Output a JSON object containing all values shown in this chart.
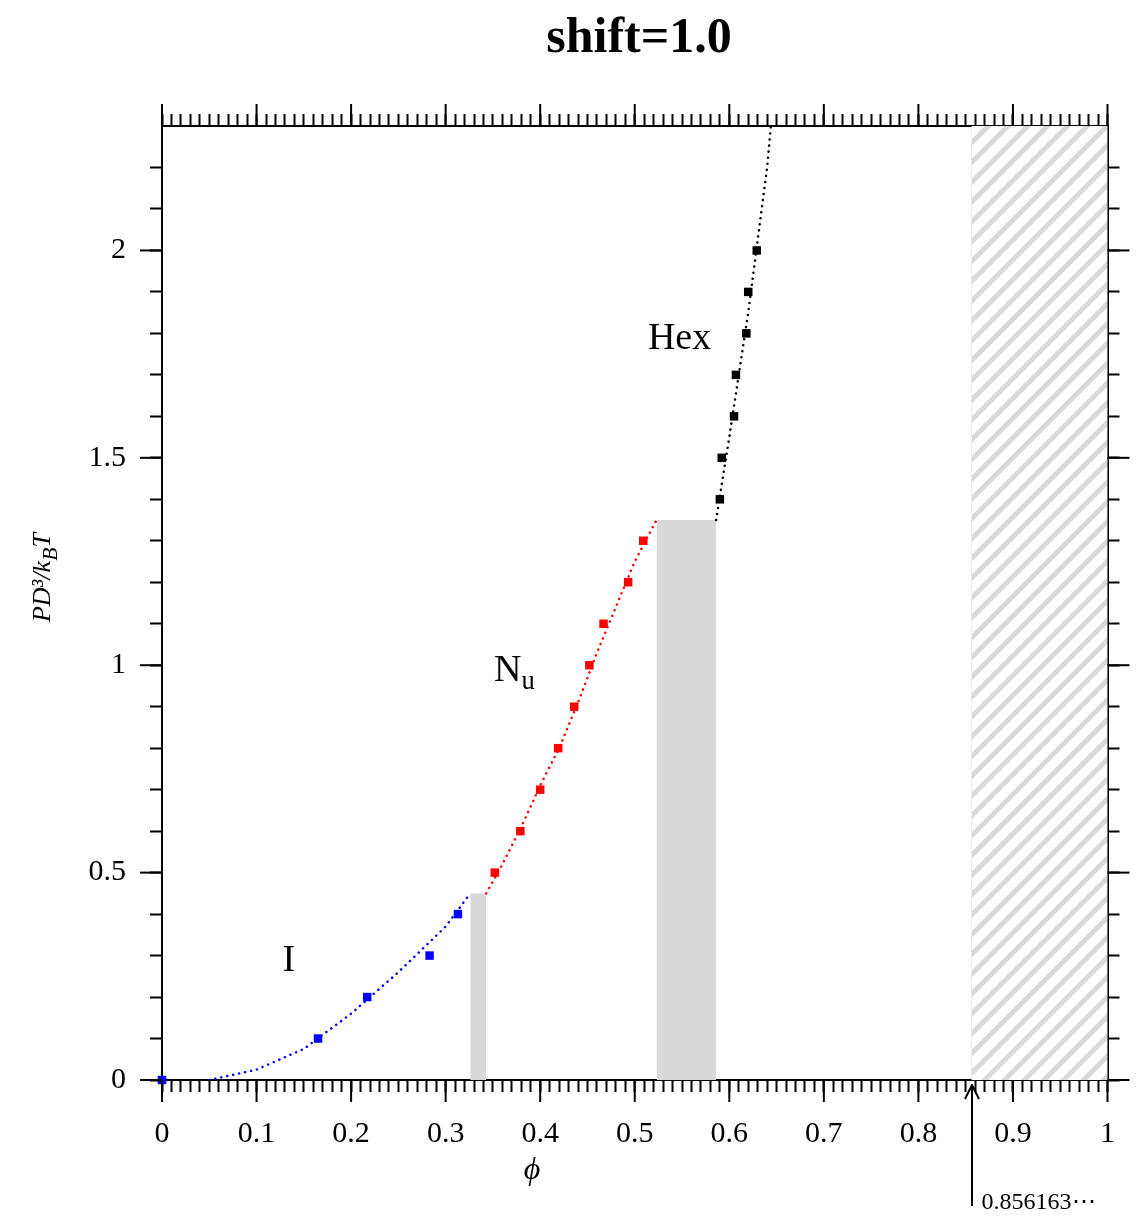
{
  "chart_data": {
    "type": "scatter",
    "title": "shift=1.0",
    "xlabel": "ϕ",
    "ylabel": "PD³/k$_{B}$T",
    "xlim": [
      0,
      1
    ],
    "ylim": [
      0,
      2.3
    ],
    "xticks": [
      0,
      {
        "value": 0.01,
        "label": null
      },
      {
        "value": 0.02,
        "label": null
      },
      {
        "value": 0.03,
        "label": null
      },
      {
        "value": 0.04,
        "label": null
      },
      {
        "value": 0.05,
        "label": null
      },
      {
        "value": 0.06,
        "label": null
      },
      {
        "value": 0.07,
        "label": null
      },
      {
        "value": 0.08,
        "label": null
      },
      {
        "value": 0.09,
        "label": null
      },
      0.1,
      {
        "value": 0.11,
        "label": null
      },
      {
        "value": 0.12,
        "label": null
      },
      {
        "value": 0.13,
        "label": null
      },
      {
        "value": 0.14,
        "label": null
      },
      {
        "value": 0.15,
        "label": null
      },
      {
        "value": 0.16,
        "label": null
      },
      {
        "value": 0.17,
        "label": null
      },
      {
        "value": 0.18,
        "label": null
      },
      {
        "value": 0.19,
        "label": null
      },
      0.2,
      {
        "value": 0.21,
        "label": null
      },
      {
        "value": 0.22,
        "label": null
      },
      {
        "value": 0.23,
        "label": null
      },
      {
        "value": 0.24,
        "label": null
      },
      {
        "value": 0.25,
        "label": null
      },
      {
        "value": 0.26,
        "label": null
      },
      {
        "value": 0.27,
        "label": null
      },
      {
        "value": 0.28,
        "label": null
      },
      {
        "value": 0.29,
        "label": null
      },
      0.3,
      {
        "value": 0.31,
        "label": null
      },
      {
        "value": 0.32,
        "label": null
      },
      {
        "value": 0.33,
        "label": null
      },
      {
        "value": 0.34,
        "label": null
      },
      {
        "value": 0.35,
        "label": null
      },
      {
        "value": 0.36,
        "label": null
      },
      {
        "value": 0.37,
        "label": null
      },
      {
        "value": 0.38,
        "label": null
      },
      {
        "value": 0.39,
        "label": null
      },
      0.4,
      {
        "value": 0.41,
        "label": null
      },
      {
        "value": 0.42,
        "label": null
      },
      {
        "value": 0.43,
        "label": null
      },
      {
        "value": 0.44,
        "label": null
      },
      {
        "value": 0.45,
        "label": null
      },
      {
        "value": 0.46,
        "label": null
      },
      {
        "value": 0.47,
        "label": null
      },
      {
        "value": 0.48,
        "label": null
      },
      {
        "value": 0.49,
        "label": null
      },
      0.5,
      {
        "value": 0.51,
        "label": null
      },
      {
        "value": 0.52,
        "label": null
      },
      {
        "value": 0.53,
        "label": null
      },
      {
        "value": 0.54,
        "label": null
      },
      {
        "value": 0.55,
        "label": null
      },
      {
        "value": 0.56,
        "label": null
      },
      {
        "value": 0.57,
        "label": null
      },
      {
        "value": 0.58,
        "label": null
      },
      {
        "value": 0.59,
        "label": null
      },
      0.6,
      {
        "value": 0.61,
        "label": null
      },
      {
        "value": 0.62,
        "label": null
      },
      {
        "value": 0.63,
        "label": null
      },
      {
        "value": 0.64,
        "label": null
      },
      {
        "value": 0.65,
        "label": null
      },
      {
        "value": 0.66,
        "label": null
      },
      {
        "value": 0.67,
        "label": null
      },
      {
        "value": 0.68,
        "label": null
      },
      {
        "value": 0.69,
        "label": null
      },
      0.7,
      {
        "value": 0.71,
        "label": null
      },
      {
        "value": 0.72,
        "label": null
      },
      {
        "value": 0.73,
        "label": null
      },
      {
        "value": 0.74,
        "label": null
      },
      {
        "value": 0.75,
        "label": null
      },
      {
        "value": 0.76,
        "label": null
      },
      {
        "value": 0.77,
        "label": null
      },
      {
        "value": 0.78,
        "label": null
      },
      {
        "value": 0.79,
        "label": null
      },
      0.8,
      {
        "value": 0.81,
        "label": null
      },
      {
        "value": 0.82,
        "label": null
      },
      {
        "value": 0.83,
        "label": null
      },
      {
        "value": 0.84,
        "label": null
      },
      {
        "value": 0.85,
        "label": null
      },
      {
        "value": 0.86,
        "label": null
      },
      {
        "value": 0.87,
        "label": null
      },
      {
        "value": 0.88,
        "label": null
      },
      {
        "value": 0.89,
        "label": null
      },
      0.9,
      {
        "value": 0.91,
        "label": null
      },
      {
        "value": 0.92,
        "label": null
      },
      {
        "value": 0.93,
        "label": null
      },
      {
        "value": 0.94,
        "label": null
      },
      {
        "value": 0.95,
        "label": null
      },
      {
        "value": 0.96,
        "label": null
      },
      {
        "value": 0.97,
        "label": null
      },
      {
        "value": 0.98,
        "label": null
      },
      {
        "value": 0.99,
        "label": null
      },
      1
    ],
    "yticks": [
      0,
      {
        "value": 0.1,
        "label": null
      },
      {
        "value": 0.2,
        "label": null
      },
      {
        "value": 0.3,
        "label": null
      },
      {
        "value": 0.4,
        "label": null
      },
      0.5,
      {
        "value": 0.6,
        "label": null
      },
      {
        "value": 0.7,
        "label": null
      },
      {
        "value": 0.8,
        "label": null
      },
      {
        "value": 0.9,
        "label": null
      },
      1,
      {
        "value": 1.1,
        "label": null
      },
      {
        "value": 1.2,
        "label": null
      },
      {
        "value": 1.3,
        "label": null
      },
      {
        "value": 1.4,
        "label": null
      },
      1.5,
      {
        "value": 1.6,
        "label": null
      },
      {
        "value": 1.7,
        "label": null
      },
      {
        "value": 1.8,
        "label": null
      },
      {
        "value": 1.9,
        "label": null
      },
      2,
      {
        "value": 2.1,
        "label": null
      },
      {
        "value": 2.2,
        "label": null
      }
    ],
    "series": [
      {
        "type": "area",
        "color": "#d9d9d9",
        "x": [
          0.326,
          0.343
        ],
        "values": [
          0.45,
          0.45
        ]
      },
      {
        "type": "area",
        "color": "#d9d9d9",
        "x": [
          0.523,
          0.586
        ],
        "values": [
          1.35,
          1.35
        ]
      },
      {
        "type": "line",
        "color": "#0000ff",
        "marker": "none",
        "line_style": "dotted",
        "x": [
          0.05,
          0.1,
          0.15,
          0.2,
          0.25,
          0.3,
          0.326
        ],
        "values": [
          0,
          0.025,
          0.075,
          0.16,
          0.26,
          0.37,
          0.45
        ]
      },
      {
        "type": "line",
        "color": "#ff0000",
        "marker": "none",
        "line_style": "dotted",
        "x": [
          0.343,
          0.36,
          0.38,
          0.4,
          0.42,
          0.44,
          0.46,
          0.48,
          0.5,
          0.523
        ],
        "values": [
          0.45,
          0.52,
          0.61,
          0.71,
          0.8,
          0.91,
          1.03,
          1.14,
          1.25,
          1.35
        ]
      },
      {
        "type": "line",
        "color": "#000000",
        "marker": "none",
        "line_style": "dotted",
        "x": [
          0.586,
          0.6,
          0.62,
          0.64,
          0.644
        ],
        "values": [
          1.35,
          1.55,
          1.85,
          2.2,
          2.3
        ]
      },
      {
        "color": "#0000ff",
        "marker": "square",
        "x": [
          0,
          0.165,
          0.217,
          0.283,
          0.313
        ],
        "values": [
          0,
          0.1,
          0.2,
          0.3,
          0.4
        ]
      },
      {
        "color": "#ff0000",
        "marker": "square",
        "x": [
          0.352,
          0.379,
          0.4,
          0.419,
          0.436,
          0.452,
          0.467,
          0.493,
          0.509
        ],
        "values": [
          0.5,
          0.6,
          0.7,
          0.8,
          0.9,
          1,
          1.1,
          1.2,
          1.3
        ]
      },
      {
        "color": "#000000",
        "marker": "square",
        "x": [
          0.59,
          0.592,
          0.605,
          0.607,
          0.618,
          0.62,
          0.629
        ],
        "values": [
          1.4,
          1.5,
          1.6,
          1.7,
          1.8,
          1.9,
          2
        ]
      }
    ],
    "bands": [
      {
        "axis": "x",
        "from": 0.856163,
        "to": 1,
        "label": "0.856163⋯",
        "color": "#d9d9d9"
      }
    ],
    "annotations": [
      "I",
      "N$_{u}$",
      "Hex"
    ]
  }
}
